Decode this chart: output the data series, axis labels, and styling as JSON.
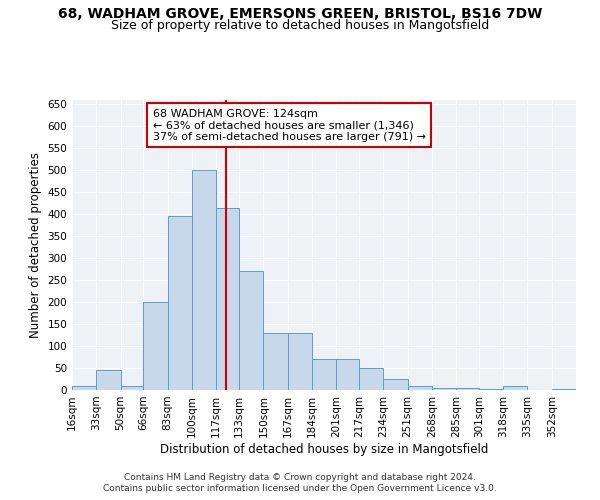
{
  "title1": "68, WADHAM GROVE, EMERSONS GREEN, BRISTOL, BS16 7DW",
  "title2": "Size of property relative to detached houses in Mangotsfield",
  "xlabel": "Distribution of detached houses by size in Mangotsfield",
  "ylabel": "Number of detached properties",
  "annotation_line1": "68 WADHAM GROVE: 124sqm",
  "annotation_line2": "← 63% of detached houses are smaller (1,346)",
  "annotation_line3": "37% of semi-detached houses are larger (791) →",
  "property_size": 124,
  "footer1": "Contains HM Land Registry data © Crown copyright and database right 2024.",
  "footer2": "Contains public sector information licensed under the Open Government Licence v3.0.",
  "bar_color": "#c8d8eb",
  "bar_edge_color": "#5a9fd4",
  "vline_color": "#cc0000",
  "annotation_box_color": "#ffffff",
  "annotation_box_edge": "#cc0000",
  "categories": [
    "16sqm",
    "33sqm",
    "50sqm",
    "66sqm",
    "83sqm",
    "100sqm",
    "117sqm",
    "133sqm",
    "150sqm",
    "167sqm",
    "184sqm",
    "201sqm",
    "217sqm",
    "234sqm",
    "251sqm",
    "268sqm",
    "285sqm",
    "301sqm",
    "318sqm",
    "335sqm",
    "352sqm"
  ],
  "bin_edges": [
    16,
    33,
    50,
    66,
    83,
    100,
    117,
    133,
    150,
    167,
    184,
    201,
    217,
    234,
    251,
    268,
    285,
    301,
    318,
    335,
    352,
    369
  ],
  "bar_heights": [
    8,
    45,
    10,
    200,
    395,
    500,
    415,
    270,
    130,
    130,
    70,
    70,
    50,
    25,
    10,
    5,
    5,
    2,
    10,
    0,
    2
  ],
  "ylim": [
    0,
    660
  ],
  "yticks": [
    0,
    50,
    100,
    150,
    200,
    250,
    300,
    350,
    400,
    450,
    500,
    550,
    600,
    650
  ],
  "title1_fontsize": 10,
  "title2_fontsize": 9,
  "xlabel_fontsize": 8.5,
  "ylabel_fontsize": 8.5,
  "tick_fontsize": 7.5,
  "annotation_fontsize": 8,
  "footer_fontsize": 6.5
}
